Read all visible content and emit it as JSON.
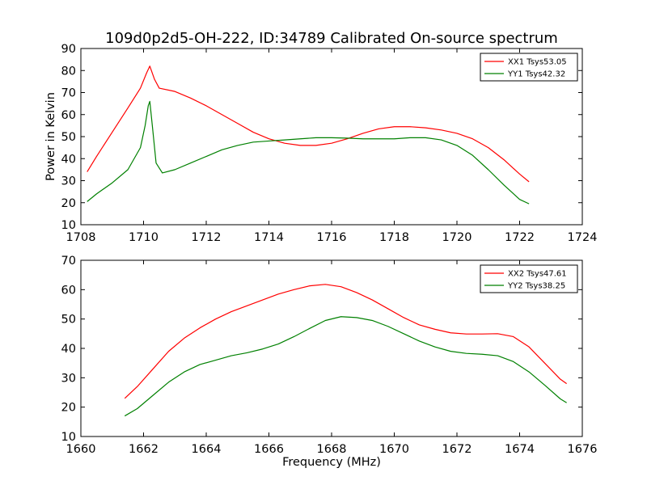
{
  "chart_data": [
    {
      "type": "line",
      "title": "109d0p2d5-OH-222, ID:34789 Calibrated On-source spectrum",
      "xlabel": "",
      "ylabel": "Power in Kelvin",
      "xlim": [
        1708,
        1724
      ],
      "ylim": [
        10,
        90
      ],
      "xticks": [
        1708,
        1710,
        1712,
        1714,
        1716,
        1718,
        1720,
        1722,
        1724
      ],
      "yticks": [
        10,
        20,
        30,
        40,
        50,
        60,
        70,
        80,
        90
      ],
      "legend": "top-right",
      "series": [
        {
          "name": "XX1 Tsys53.05",
          "color": "#ff0000",
          "x": [
            1708.2,
            1708.5,
            1709.0,
            1709.5,
            1709.9,
            1710.1,
            1710.2,
            1710.35,
            1710.5,
            1711.0,
            1711.5,
            1712.0,
            1712.5,
            1713.0,
            1713.5,
            1714.0,
            1714.5,
            1715.0,
            1715.5,
            1716.0,
            1716.5,
            1717.0,
            1717.5,
            1718.0,
            1718.5,
            1719.0,
            1719.5,
            1720.0,
            1720.5,
            1721.0,
            1721.5,
            1722.0,
            1722.3
          ],
          "y": [
            34,
            41,
            52,
            63,
            72,
            79,
            82,
            76,
            72,
            70.5,
            67.5,
            64,
            60,
            56,
            52,
            49,
            47,
            46,
            46,
            47,
            49,
            51.5,
            53.5,
            54.5,
            54.5,
            54,
            53,
            51.5,
            49,
            45,
            39.5,
            33,
            29.5
          ]
        },
        {
          "name": "YY1 Tsys42.32",
          "color": "#008000",
          "x": [
            1708.2,
            1708.5,
            1709.0,
            1709.5,
            1709.9,
            1710.05,
            1710.15,
            1710.2,
            1710.28,
            1710.4,
            1710.6,
            1711.0,
            1711.5,
            1712.0,
            1712.5,
            1713.0,
            1713.5,
            1714.0,
            1714.5,
            1715.0,
            1715.5,
            1716.0,
            1716.5,
            1717.0,
            1717.5,
            1718.0,
            1718.5,
            1719.0,
            1719.5,
            1720.0,
            1720.5,
            1721.0,
            1721.5,
            1722.0,
            1722.3
          ],
          "y": [
            20.5,
            24,
            29,
            35,
            45,
            55,
            64,
            66,
            55,
            38,
            33.5,
            35,
            38,
            41,
            44,
            46,
            47.5,
            48,
            48.5,
            49,
            49.5,
            49.5,
            49.3,
            49,
            49,
            49,
            49.5,
            49.5,
            48.5,
            46,
            41.5,
            35,
            28,
            21.5,
            19.5
          ]
        }
      ]
    },
    {
      "type": "line",
      "title": "",
      "xlabel": "Frequency (MHz)",
      "ylabel": "",
      "xlim": [
        1660,
        1676
      ],
      "ylim": [
        10,
        70
      ],
      "xticks": [
        1660,
        1662,
        1664,
        1666,
        1668,
        1670,
        1672,
        1674,
        1676
      ],
      "yticks": [
        10,
        20,
        30,
        40,
        50,
        60,
        70
      ],
      "legend": "top-right",
      "series": [
        {
          "name": "XX2 Tsys47.61",
          "color": "#ff0000",
          "x": [
            1661.4,
            1661.8,
            1662.3,
            1662.8,
            1663.3,
            1663.8,
            1664.3,
            1664.8,
            1665.3,
            1665.8,
            1666.3,
            1666.8,
            1667.3,
            1667.8,
            1668.3,
            1668.8,
            1669.3,
            1669.8,
            1670.3,
            1670.8,
            1671.3,
            1671.8,
            1672.3,
            1672.8,
            1673.3,
            1673.8,
            1674.3,
            1674.8,
            1675.3,
            1675.5
          ],
          "y": [
            23,
            27,
            33,
            39,
            43.5,
            47,
            50,
            52.5,
            54.5,
            56.5,
            58.5,
            60,
            61.3,
            61.8,
            61,
            59,
            56.5,
            53.5,
            50.5,
            48,
            46.5,
            45.3,
            44.9,
            44.9,
            45,
            44,
            40.5,
            35,
            29.5,
            28
          ]
        },
        {
          "name": "YY2 Tsys38.25",
          "color": "#008000",
          "x": [
            1661.4,
            1661.8,
            1662.3,
            1662.8,
            1663.3,
            1663.8,
            1664.3,
            1664.8,
            1665.3,
            1665.8,
            1666.3,
            1666.8,
            1667.3,
            1667.8,
            1668.3,
            1668.8,
            1669.3,
            1669.8,
            1670.3,
            1670.8,
            1671.3,
            1671.8,
            1672.3,
            1672.8,
            1673.3,
            1673.8,
            1674.3,
            1674.8,
            1675.3,
            1675.5
          ],
          "y": [
            17,
            19.5,
            24,
            28.5,
            32,
            34.5,
            36,
            37.5,
            38.5,
            39.8,
            41.5,
            44,
            46.8,
            49.5,
            50.8,
            50.5,
            49.5,
            47.5,
            45,
            42.5,
            40.5,
            39,
            38.3,
            38,
            37.5,
            35.5,
            32,
            27.5,
            22.8,
            21.5
          ]
        }
      ]
    }
  ]
}
